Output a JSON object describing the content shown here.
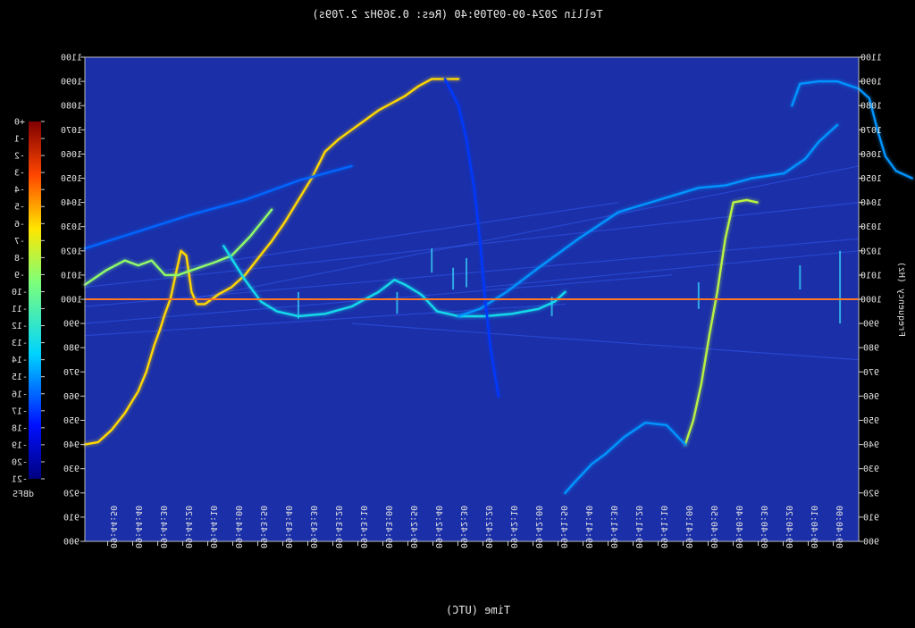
{
  "window": {
    "title": "Tellin 2024-09-09T09:40 (Res: 0.369Hz 2.709s)",
    "mirrored": true
  },
  "chart_data": {
    "type": "heatmap",
    "title": "Tellin 2024-09-09T09:40 (Res: 0.369Hz 2.709s)",
    "xlabel": "Time (UTC)",
    "ylabel": "Frequency (Hz)",
    "ylim": [
      900,
      1100
    ],
    "y_ticks": [
      900,
      910,
      920,
      930,
      940,
      950,
      960,
      970,
      980,
      990,
      1000,
      1010,
      1020,
      1030,
      1040,
      1050,
      1060,
      1070,
      1080,
      1090,
      1100
    ],
    "x_ticks": [
      "09:44:50",
      "09:44:40",
      "09:44:30",
      "09:44:20",
      "09:44:10",
      "09:44:00",
      "09:43:50",
      "09:43:40",
      "09:43:30",
      "09:43:20",
      "09:43:10",
      "09:43:00",
      "09:42:50",
      "09:42:40",
      "09:42:30",
      "09:42:20",
      "09:42:10",
      "09:42:00",
      "09:41:50",
      "09:41:40",
      "09:41:30",
      "09:41:20",
      "09:41:10",
      "09:41:00",
      "09:40:50",
      "09:40:40",
      "09:40:30",
      "09:40:20",
      "09:40:10",
      "09:40:00"
    ],
    "colorbar": {
      "label": "dBFS",
      "ticks": [
        "+0",
        "-1",
        "-2",
        "-3",
        "-4",
        "-5",
        "-6",
        "-7",
        "-8",
        "-9",
        "-10",
        "-11",
        "-12",
        "-13",
        "-14",
        "-15",
        "-16",
        "-17",
        "-18",
        "-19",
        "-20",
        "-21"
      ],
      "range": [
        -21,
        0
      ]
    },
    "reference_line_hz": 1000,
    "background_color": "#1a2fa8",
    "traces": [
      {
        "name": "",
        "level_dbfs": -6,
        "points": [
          [
            0,
            940
          ],
          [
            5,
            941
          ],
          [
            10,
            946
          ],
          [
            15,
            953
          ],
          [
            20,
            962
          ],
          [
            23,
            970
          ],
          [
            26,
            981
          ],
          [
            28,
            987
          ],
          [
            30,
            994
          ],
          [
            32,
            1000
          ],
          [
            34,
            1010
          ],
          [
            36,
            1020
          ],
          [
            38,
            1018
          ],
          [
            40,
            1003
          ],
          [
            42,
            998
          ],
          [
            45,
            998
          ],
          [
            50,
            1002
          ],
          [
            55,
            1005
          ],
          [
            60,
            1010
          ],
          [
            65,
            1017
          ],
          [
            70,
            1024
          ],
          [
            75,
            1032
          ],
          [
            80,
            1041
          ],
          [
            85,
            1050
          ],
          [
            90,
            1061
          ],
          [
            95,
            1066
          ],
          [
            100,
            1070
          ],
          [
            105,
            1074
          ],
          [
            110,
            1078
          ],
          [
            115,
            1081
          ],
          [
            120,
            1084
          ],
          [
            125,
            1088
          ],
          [
            130,
            1091
          ],
          [
            135,
            1091
          ],
          [
            140,
            1091
          ]
        ]
      },
      {
        "name": "",
        "level_dbfs": -9,
        "points": [
          [
            0,
            1006
          ],
          [
            8,
            1012
          ],
          [
            15,
            1016
          ],
          [
            20,
            1014
          ],
          [
            25,
            1016
          ],
          [
            30,
            1010
          ],
          [
            35,
            1010
          ],
          [
            40,
            1012
          ],
          [
            48,
            1015
          ],
          [
            55,
            1018
          ],
          [
            62,
            1026
          ],
          [
            70,
            1037
          ]
        ]
      },
      {
        "name": "",
        "level_dbfs": -13,
        "points": [
          [
            52,
            1022
          ],
          [
            60,
            1008
          ],
          [
            66,
            999
          ],
          [
            72,
            995
          ],
          [
            80,
            993
          ],
          [
            90,
            994
          ],
          [
            100,
            997
          ],
          [
            110,
            1003
          ],
          [
            116,
            1008
          ],
          [
            120,
            1006
          ],
          [
            126,
            1002
          ],
          [
            132,
            995
          ],
          [
            140,
            993
          ],
          [
            150,
            993
          ],
          [
            160,
            994
          ],
          [
            170,
            996
          ],
          [
            176,
            999
          ],
          [
            180,
            1003
          ]
        ]
      },
      {
        "name": "",
        "level_dbfs": -15,
        "points": [
          [
            140,
            993
          ],
          [
            148,
            996
          ],
          [
            158,
            1003
          ],
          [
            170,
            1013
          ],
          [
            185,
            1025
          ],
          [
            200,
            1036
          ],
          [
            215,
            1041
          ],
          [
            230,
            1046
          ],
          [
            240,
            1047
          ],
          [
            250,
            1050
          ],
          [
            262,
            1052
          ],
          [
            270,
            1058
          ],
          [
            275,
            1065
          ],
          [
            282,
            1072
          ]
        ]
      },
      {
        "name": "",
        "level_dbfs": -16,
        "points": [
          [
            0,
            1021
          ],
          [
            20,
            1028
          ],
          [
            40,
            1035
          ],
          [
            60,
            1041
          ],
          [
            80,
            1049
          ],
          [
            100,
            1055
          ]
        ]
      },
      {
        "name": "",
        "level_dbfs": -8,
        "points": [
          [
            225,
            940
          ],
          [
            228,
            950
          ],
          [
            231,
            965
          ],
          [
            234,
            985
          ],
          [
            237,
            1003
          ],
          [
            240,
            1025
          ],
          [
            243,
            1040
          ],
          [
            248,
            1041
          ],
          [
            252,
            1040
          ]
        ]
      },
      {
        "name": "",
        "level_dbfs": -15,
        "points": [
          [
            225,
            940
          ],
          [
            218,
            948
          ],
          [
            210,
            949
          ],
          [
            202,
            943
          ],
          [
            195,
            936
          ],
          [
            190,
            932
          ],
          [
            184,
            925
          ],
          [
            180,
            920
          ]
        ]
      },
      {
        "name": "",
        "level_dbfs": -15,
        "points": [
          [
            265,
            1080
          ],
          [
            268,
            1089
          ],
          [
            275,
            1090
          ],
          [
            282,
            1090
          ],
          [
            290,
            1087
          ],
          [
            294,
            1083
          ],
          [
            297,
            1070
          ],
          [
            300,
            1059
          ],
          [
            304,
            1053
          ],
          [
            310,
            1050
          ]
        ]
      },
      {
        "name": "",
        "level_dbfs": -17,
        "points": [
          [
            135,
            1091
          ],
          [
            140,
            1080
          ],
          [
            143,
            1066
          ],
          [
            146,
            1045
          ],
          [
            148,
            1025
          ],
          [
            150,
            1000
          ],
          [
            152,
            980
          ],
          [
            155,
            960
          ]
        ]
      }
    ]
  }
}
